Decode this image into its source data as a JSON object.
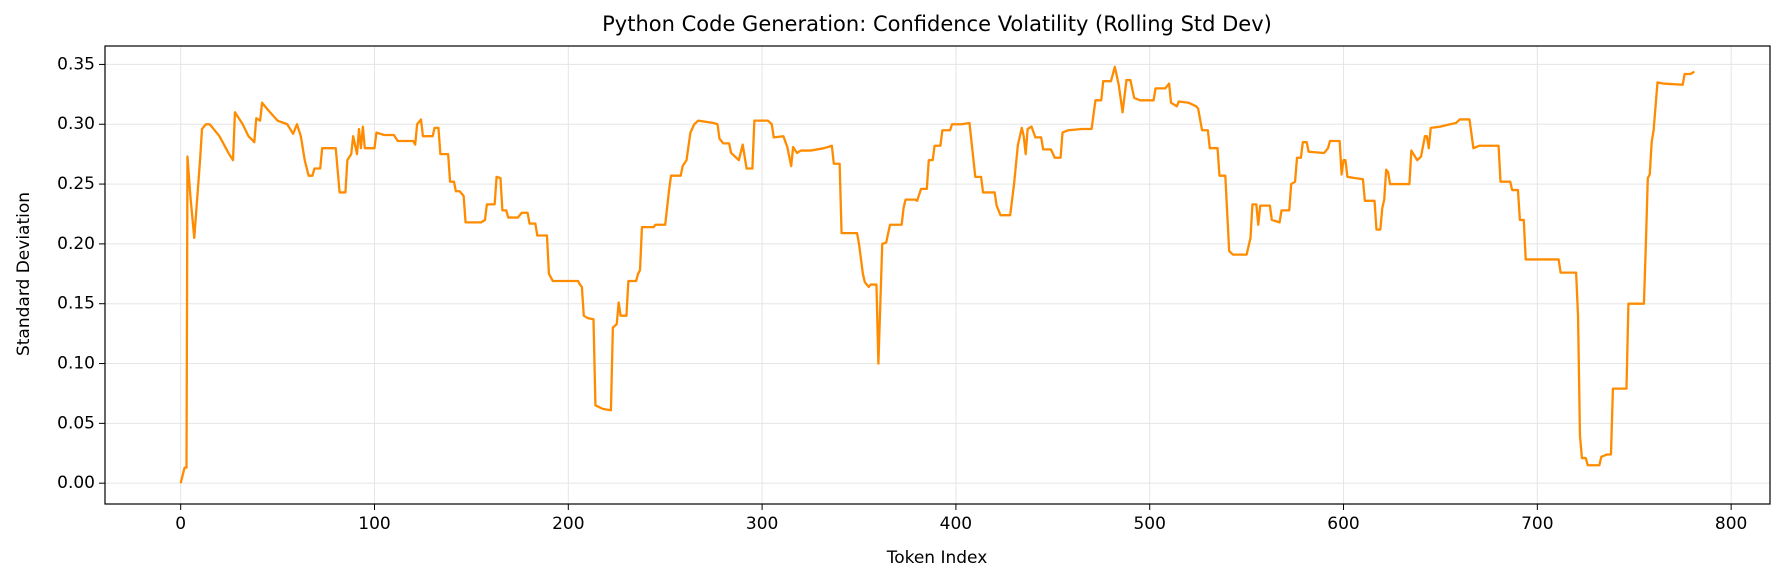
{
  "chart_data": {
    "type": "line",
    "title": "Python Code Generation: Confidence Volatility (Rolling Std Dev)",
    "x_label": "Token Index",
    "y_label": "Standard Deviation",
    "color": "#ff8c00",
    "grid": true,
    "xlim": [
      -39.05,
      820.05
    ],
    "ylim": [
      -0.0174,
      0.3654
    ],
    "xticks": [
      0,
      100,
      200,
      300,
      400,
      500,
      600,
      700,
      800
    ],
    "yticks": [
      {
        "value": 0,
        "label": "0.00"
      },
      {
        "value": 0.05,
        "label": "0.05"
      },
      {
        "value": 0.1,
        "label": "0.10"
      },
      {
        "value": 0.15,
        "label": "0.15"
      },
      {
        "value": 0.2,
        "label": "0.20"
      },
      {
        "value": 0.25,
        "label": "0.25"
      },
      {
        "value": 0.3,
        "label": "0.30"
      },
      {
        "value": 0.35,
        "label": "0.35"
      }
    ],
    "x": [
      0,
      2,
      3,
      3.5,
      5,
      7,
      10,
      11,
      13,
      15,
      20,
      25,
      27,
      28,
      32,
      35,
      38,
      39,
      41,
      42,
      45,
      50,
      55,
      58,
      60,
      62,
      64,
      66,
      68,
      69,
      72,
      73,
      80,
      82,
      85,
      86,
      88,
      89,
      91,
      92,
      93,
      94,
      95,
      100,
      101,
      105,
      110,
      112,
      120,
      121,
      122,
      124,
      125,
      130,
      131,
      133,
      134,
      138,
      139,
      141,
      142,
      144,
      146,
      147,
      152,
      155,
      157,
      158,
      162,
      163,
      165,
      166,
      168,
      169,
      174,
      176,
      179,
      180,
      183,
      184,
      189,
      190,
      192,
      205,
      206,
      207,
      208,
      210,
      213,
      214,
      218,
      222,
      223,
      225,
      226,
      227,
      230,
      231,
      235,
      236,
      237,
      238,
      244,
      245,
      250,
      252,
      253,
      258,
      259,
      261,
      263,
      265,
      267,
      275,
      277,
      278,
      280,
      283,
      284,
      288,
      290,
      292,
      295,
      296,
      303,
      305,
      306,
      311,
      313,
      315,
      316,
      318,
      320,
      325,
      332,
      336,
      337,
      340,
      341,
      349,
      350,
      352,
      353,
      355,
      356,
      359,
      360,
      362,
      364,
      366,
      372,
      373,
      374,
      379,
      380,
      382,
      385,
      386,
      388,
      389,
      392,
      393,
      397,
      398,
      403,
      407,
      410,
      413,
      414,
      420,
      421,
      423,
      428,
      430,
      432,
      434,
      435,
      436,
      437,
      439,
      441,
      444,
      445,
      449,
      451,
      454,
      455,
      458,
      465,
      470,
      472,
      475,
      476,
      480,
      482,
      484,
      486,
      488,
      490,
      492,
      495,
      502,
      503,
      508,
      510,
      511,
      514,
      515,
      520,
      524,
      525,
      527,
      530,
      531,
      535,
      536,
      539,
      541,
      543,
      550,
      552,
      553,
      555,
      556,
      557,
      562,
      563,
      567,
      568,
      572,
      573,
      575,
      576,
      578,
      579,
      581,
      582,
      590,
      592,
      593,
      598,
      599,
      600,
      601,
      602,
      610,
      611,
      616,
      617,
      619,
      620,
      621,
      622,
      623,
      624,
      634,
      635,
      638,
      640,
      642,
      643,
      644,
      645,
      650,
      655,
      658,
      660,
      665,
      667,
      670,
      680,
      681,
      686,
      687,
      690,
      691,
      693,
      694,
      700,
      711,
      712,
      720,
      721,
      722,
      723,
      725,
      726,
      732,
      733,
      736,
      738,
      739,
      746,
      747,
      755,
      756,
      757,
      758,
      759,
      760,
      762,
      765,
      775,
      776,
      779,
      781
    ],
    "values": [
      0,
      0.013,
      0.013,
      0.273,
      0.24,
      0.205,
      0.27,
      0.296,
      0.3,
      0.3,
      0.29,
      0.275,
      0.27,
      0.31,
      0.3,
      0.29,
      0.285,
      0.305,
      0.303,
      0.318,
      0.312,
      0.303,
      0.3,
      0.292,
      0.3,
      0.29,
      0.27,
      0.257,
      0.257,
      0.263,
      0.263,
      0.28,
      0.28,
      0.243,
      0.243,
      0.27,
      0.275,
      0.29,
      0.275,
      0.296,
      0.28,
      0.298,
      0.28,
      0.28,
      0.293,
      0.291,
      0.291,
      0.286,
      0.286,
      0.283,
      0.3,
      0.304,
      0.29,
      0.29,
      0.297,
      0.297,
      0.275,
      0.275,
      0.252,
      0.252,
      0.244,
      0.244,
      0.24,
      0.218,
      0.218,
      0.218,
      0.22,
      0.233,
      0.233,
      0.256,
      0.255,
      0.228,
      0.228,
      0.222,
      0.222,
      0.226,
      0.226,
      0.217,
      0.217,
      0.207,
      0.207,
      0.175,
      0.169,
      0.169,
      0.166,
      0.164,
      0.14,
      0.138,
      0.137,
      0.065,
      0.062,
      0.061,
      0.13,
      0.133,
      0.151,
      0.14,
      0.14,
      0.169,
      0.169,
      0.175,
      0.178,
      0.214,
      0.214,
      0.216,
      0.216,
      0.245,
      0.257,
      0.257,
      0.265,
      0.27,
      0.293,
      0.3,
      0.303,
      0.301,
      0.3,
      0.288,
      0.284,
      0.284,
      0.276,
      0.27,
      0.283,
      0.263,
      0.263,
      0.303,
      0.303,
      0.3,
      0.289,
      0.29,
      0.281,
      0.265,
      0.281,
      0.276,
      0.278,
      0.278,
      0.28,
      0.282,
      0.267,
      0.267,
      0.209,
      0.209,
      0.2,
      0.175,
      0.168,
      0.164,
      0.166,
      0.166,
      0.1,
      0.2,
      0.201,
      0.216,
      0.216,
      0.23,
      0.237,
      0.237,
      0.236,
      0.246,
      0.246,
      0.27,
      0.27,
      0.282,
      0.282,
      0.295,
      0.295,
      0.3,
      0.3,
      0.301,
      0.256,
      0.256,
      0.243,
      0.243,
      0.232,
      0.224,
      0.224,
      0.25,
      0.283,
      0.297,
      0.29,
      0.275,
      0.296,
      0.298,
      0.289,
      0.289,
      0.279,
      0.279,
      0.272,
      0.272,
      0.293,
      0.295,
      0.296,
      0.296,
      0.32,
      0.32,
      0.336,
      0.336,
      0.348,
      0.333,
      0.31,
      0.337,
      0.337,
      0.322,
      0.32,
      0.32,
      0.33,
      0.33,
      0.334,
      0.318,
      0.315,
      0.319,
      0.318,
      0.315,
      0.313,
      0.295,
      0.295,
      0.28,
      0.28,
      0.257,
      0.257,
      0.194,
      0.191,
      0.191,
      0.205,
      0.233,
      0.233,
      0.216,
      0.232,
      0.232,
      0.22,
      0.218,
      0.228,
      0.228,
      0.25,
      0.252,
      0.272,
      0.272,
      0.285,
      0.285,
      0.277,
      0.276,
      0.28,
      0.286,
      0.286,
      0.258,
      0.27,
      0.27,
      0.256,
      0.254,
      0.236,
      0.236,
      0.212,
      0.212,
      0.23,
      0.237,
      0.262,
      0.26,
      0.25,
      0.25,
      0.278,
      0.27,
      0.273,
      0.29,
      0.29,
      0.28,
      0.297,
      0.298,
      0.3,
      0.301,
      0.304,
      0.304,
      0.28,
      0.282,
      0.282,
      0.252,
      0.252,
      0.245,
      0.245,
      0.22,
      0.22,
      0.187,
      0.187,
      0.187,
      0.176,
      0.176,
      0.14,
      0.04,
      0.021,
      0.021,
      0.015,
      0.015,
      0.022,
      0.024,
      0.024,
      0.079,
      0.079,
      0.15,
      0.15,
      0.2,
      0.255,
      0.258,
      0.285,
      0.295,
      0.335,
      0.334,
      0.333,
      0.342,
      0.342,
      0.344
    ]
  }
}
